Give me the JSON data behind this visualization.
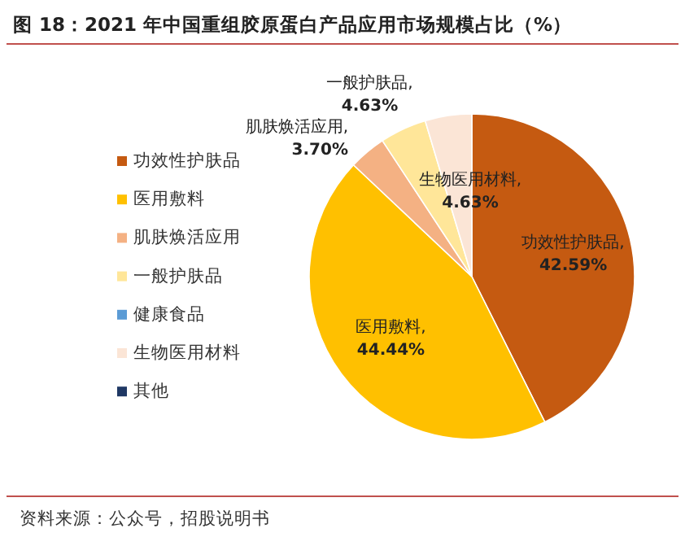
{
  "chart_data": {
    "type": "pie",
    "title": "图 18：2021 年中国重组胶原蛋白产品应用市场规模占比（%）",
    "categories": [
      "功效性护肤品",
      "医用敷料",
      "肌肤焕活应用",
      "一般护肤品",
      "健康食品",
      "生物医用材料",
      "其他"
    ],
    "values": [
      42.59,
      44.44,
      3.7,
      4.63,
      0,
      4.63,
      0
    ],
    "colors": [
      "#c55a11",
      "#ffc000",
      "#f4b183",
      "#ffe699",
      "#5b9bd5",
      "#fbe5d6",
      "#1f3864"
    ],
    "value_labels": [
      "功效性护肤品,\n42.59%",
      "医用敷料,\n44.44%",
      "肌肤焕活应用,\n3.70%",
      "一般护肤品,\n4.63%",
      null,
      "生物医用材料,\n4.63%",
      null
    ],
    "legend": "left",
    "annotations": [
      "资料来源：公众号，招股说明书"
    ]
  }
}
